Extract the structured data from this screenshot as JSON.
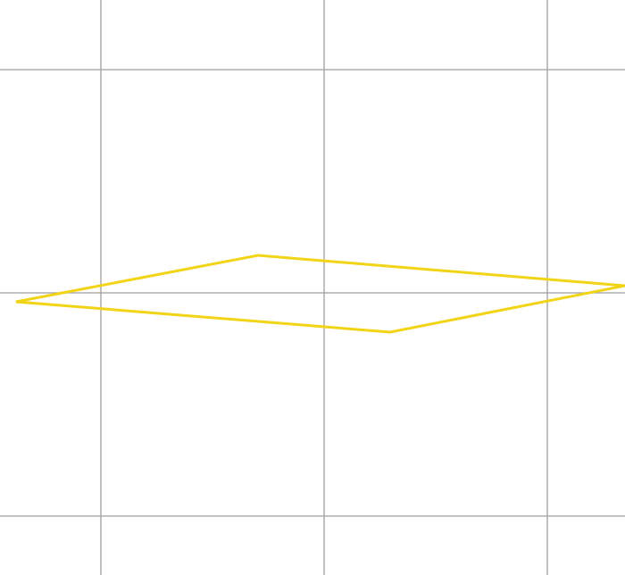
{
  "canvas": {
    "background": "#ffffff"
  },
  "grid": {
    "visible": true,
    "line_color": "#9e9e9e"
  },
  "shape": {
    "type": "quadrilateral",
    "stroke_color": "#f2d416",
    "fill": "none"
  }
}
